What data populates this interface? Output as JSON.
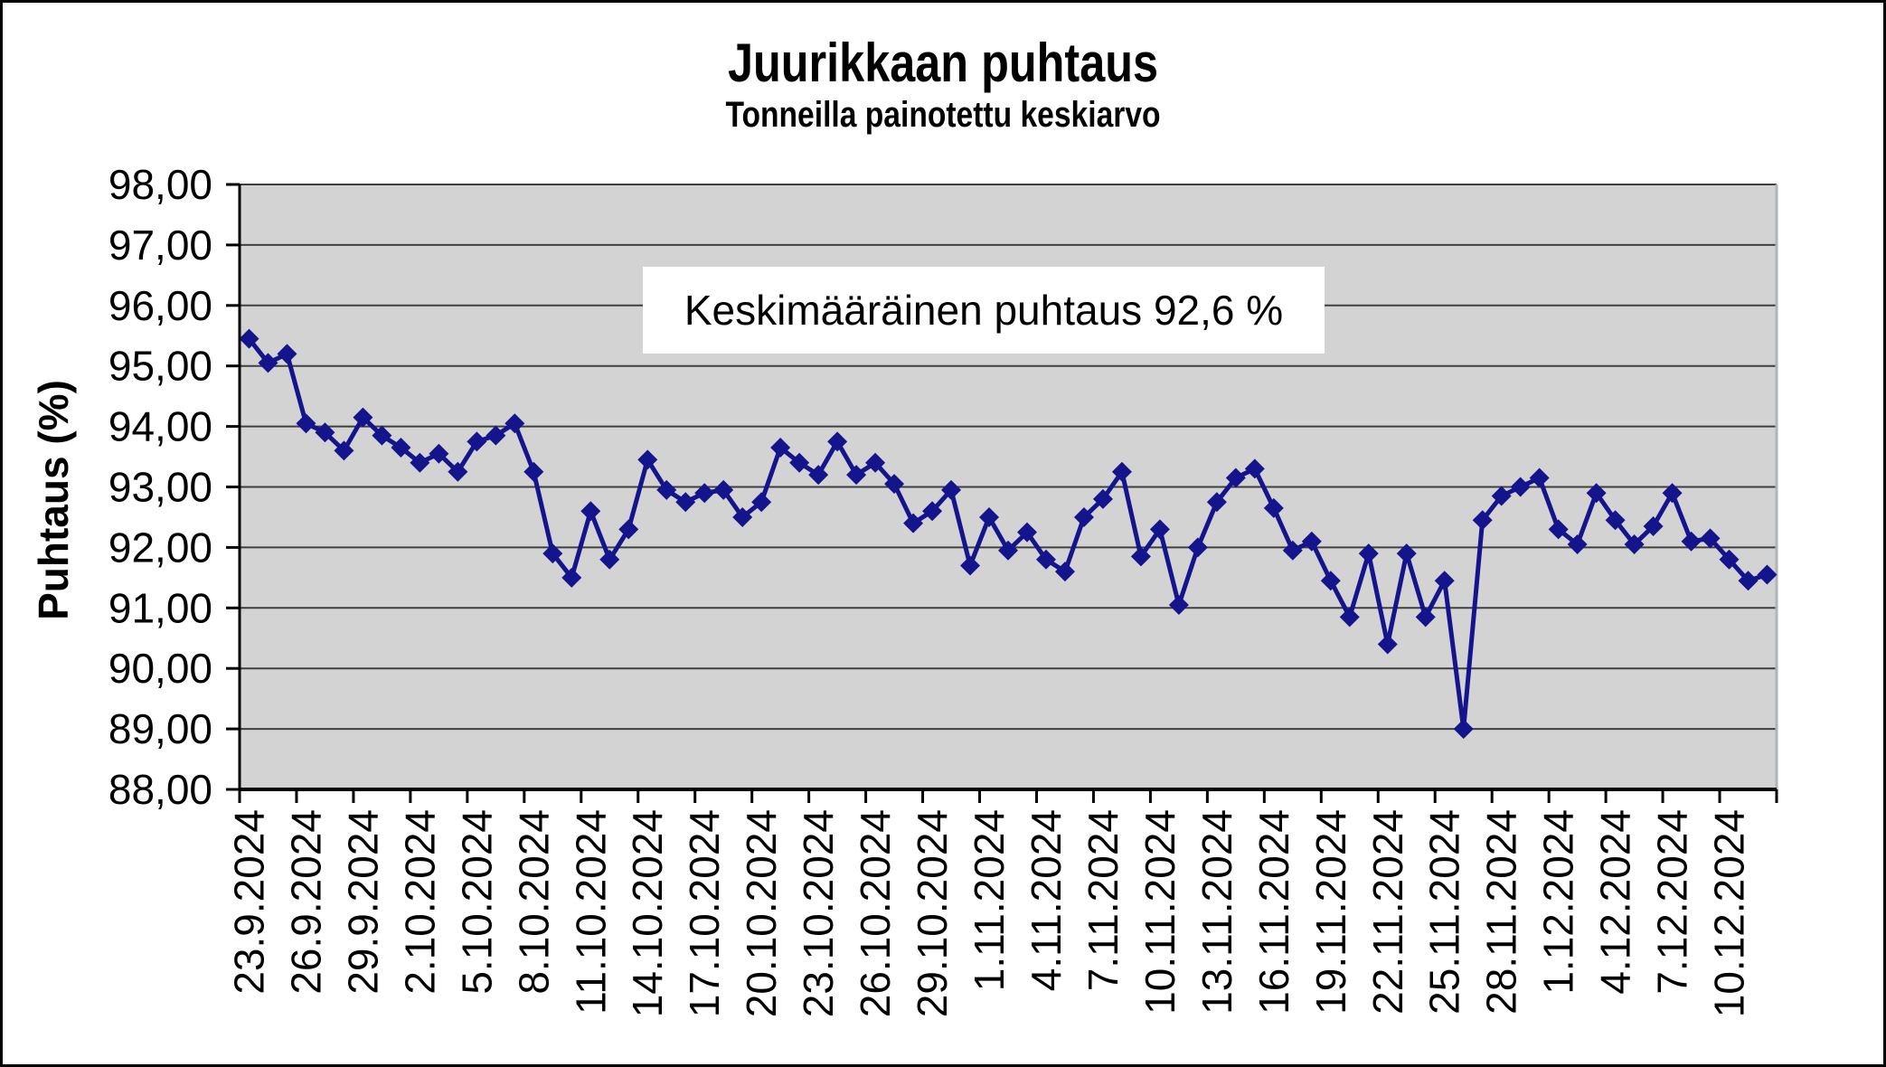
{
  "chart_data": {
    "type": "line",
    "title": "Juurikkaan puhtaus",
    "subtitle": "Tonneilla painotettu keskiarvo",
    "ylabel": "Puhtaus (%)",
    "xlabel": "",
    "annotation": "Keskimääräinen puhtaus 92,6 %",
    "average_purity_pct": "92,6",
    "ylim": [
      88,
      98
    ],
    "ytick_step": 1,
    "ytick_labels": [
      "98,00",
      "97,00",
      "96,00",
      "95,00",
      "94,00",
      "93,00",
      "92,00",
      "91,00",
      "90,00",
      "89,00",
      "88,00"
    ],
    "xtick_interval_days": 3,
    "xtick_labels": [
      "23.9.2024",
      "26.9.2024",
      "29.9.2024",
      "2.10.2024",
      "5.10.2024",
      "8.10.2024",
      "11.10.2024",
      "14.10.2024",
      "17.10.2024",
      "20.10.2024",
      "23.10.2024",
      "26.10.2024",
      "29.10.2024",
      "1.11.2024",
      "4.11.2024",
      "7.11.2024",
      "10.11.2024",
      "13.11.2024",
      "16.11.2024",
      "19.11.2024",
      "22.11.2024",
      "25.11.2024",
      "28.11.2024",
      "1.12.2024",
      "4.12.2024",
      "7.12.2024",
      "10.12.2024"
    ],
    "grid": "horizontal",
    "legend_position": "none",
    "series": [
      {
        "name": "Puhtaus (%)",
        "marker": "diamond",
        "color": "#14148C",
        "x": [
          "23.9.2024",
          "24.9.2024",
          "25.9.2024",
          "26.9.2024",
          "27.9.2024",
          "28.9.2024",
          "29.9.2024",
          "30.9.2024",
          "1.10.2024",
          "2.10.2024",
          "3.10.2024",
          "4.10.2024",
          "5.10.2024",
          "6.10.2024",
          "7.10.2024",
          "8.10.2024",
          "9.10.2024",
          "10.10.2024",
          "11.10.2024",
          "12.10.2024",
          "13.10.2024",
          "14.10.2024",
          "15.10.2024",
          "16.10.2024",
          "17.10.2024",
          "18.10.2024",
          "19.10.2024",
          "20.10.2024",
          "21.10.2024",
          "22.10.2024",
          "23.10.2024",
          "24.10.2024",
          "25.10.2024",
          "26.10.2024",
          "27.10.2024",
          "28.10.2024",
          "29.10.2024",
          "30.10.2024",
          "31.10.2024",
          "1.11.2024",
          "2.11.2024",
          "3.11.2024",
          "4.11.2024",
          "5.11.2024",
          "6.11.2024",
          "7.11.2024",
          "8.11.2024",
          "9.11.2024",
          "10.11.2024",
          "11.11.2024",
          "12.11.2024",
          "13.11.2024",
          "14.11.2024",
          "15.11.2024",
          "16.11.2024",
          "17.11.2024",
          "18.11.2024",
          "19.11.2024",
          "20.11.2024",
          "21.11.2024",
          "22.11.2024",
          "23.11.2024",
          "24.11.2024",
          "25.11.2024",
          "26.11.2024",
          "27.11.2024",
          "28.11.2024",
          "29.11.2024",
          "30.11.2024",
          "1.12.2024",
          "2.12.2024",
          "3.12.2024",
          "4.12.2024",
          "5.12.2024",
          "6.12.2024",
          "7.12.2024",
          "8.12.2024",
          "9.12.2024",
          "10.12.2024",
          "11.12.2024",
          "12.12.2024"
        ],
        "values": [
          95.45,
          95.05,
          95.2,
          94.05,
          93.9,
          93.6,
          94.15,
          93.85,
          93.65,
          93.4,
          93.55,
          93.25,
          93.75,
          93.85,
          94.05,
          93.25,
          91.9,
          91.5,
          92.6,
          91.8,
          92.3,
          93.45,
          92.95,
          92.75,
          92.9,
          92.95,
          92.5,
          92.75,
          93.65,
          93.4,
          93.2,
          93.75,
          93.2,
          93.4,
          93.05,
          92.4,
          92.6,
          92.95,
          91.7,
          92.5,
          91.95,
          92.25,
          91.8,
          91.6,
          92.5,
          92.8,
          93.25,
          91.85,
          92.3,
          91.05,
          92.0,
          92.75,
          93.15,
          93.3,
          92.65,
          91.95,
          92.1,
          91.45,
          90.85,
          91.9,
          90.4,
          91.9,
          90.85,
          91.45,
          89.0,
          92.45,
          92.85,
          93.0,
          93.15,
          92.3,
          92.05,
          92.9,
          92.45,
          92.05,
          92.35,
          92.9,
          92.1,
          92.15,
          91.8,
          91.45,
          91.55
        ]
      }
    ]
  },
  "colors": {
    "plot_background": "#D3D3D3",
    "gridline": "#3F3F3F",
    "axis": "#000000",
    "plot_right_border": "#AEB4BA",
    "series_line": "#14148C",
    "annotation_background": "#FFFFFF",
    "canvas_border": "#000000",
    "text": "#000000"
  }
}
